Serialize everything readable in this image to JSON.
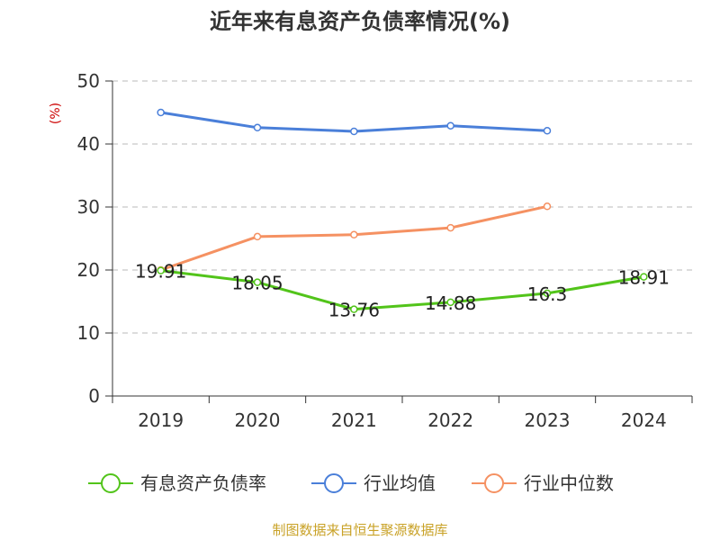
{
  "chart_data": {
    "type": "line",
    "title": "近年来有息资产负债率情况(%)",
    "ylabel": "(%)",
    "xlabel": "",
    "categories": [
      "2019",
      "2020",
      "2021",
      "2022",
      "2023",
      "2024"
    ],
    "ylim": [
      0,
      50
    ],
    "yticks": [
      0,
      10,
      20,
      30,
      40,
      50
    ],
    "grid": true,
    "legend_position": "bottom",
    "series": [
      {
        "name": "有息资产负债率",
        "color": "#52c41a",
        "values": [
          19.91,
          18.05,
          13.76,
          14.88,
          16.3,
          18.91
        ],
        "labels": [
          "19.91",
          "18.05",
          "13.76",
          "14.88",
          "16.3",
          "18.91"
        ]
      },
      {
        "name": "行业均值",
        "color": "#4a7fd9",
        "values": [
          45.0,
          42.6,
          42.0,
          42.9,
          42.1,
          null
        ]
      },
      {
        "name": "行业中位数",
        "color": "#f59162",
        "values": [
          20.0,
          25.3,
          25.6,
          26.7,
          30.1,
          null
        ]
      }
    ],
    "source": "制图数据来自恒生聚源数据库"
  }
}
